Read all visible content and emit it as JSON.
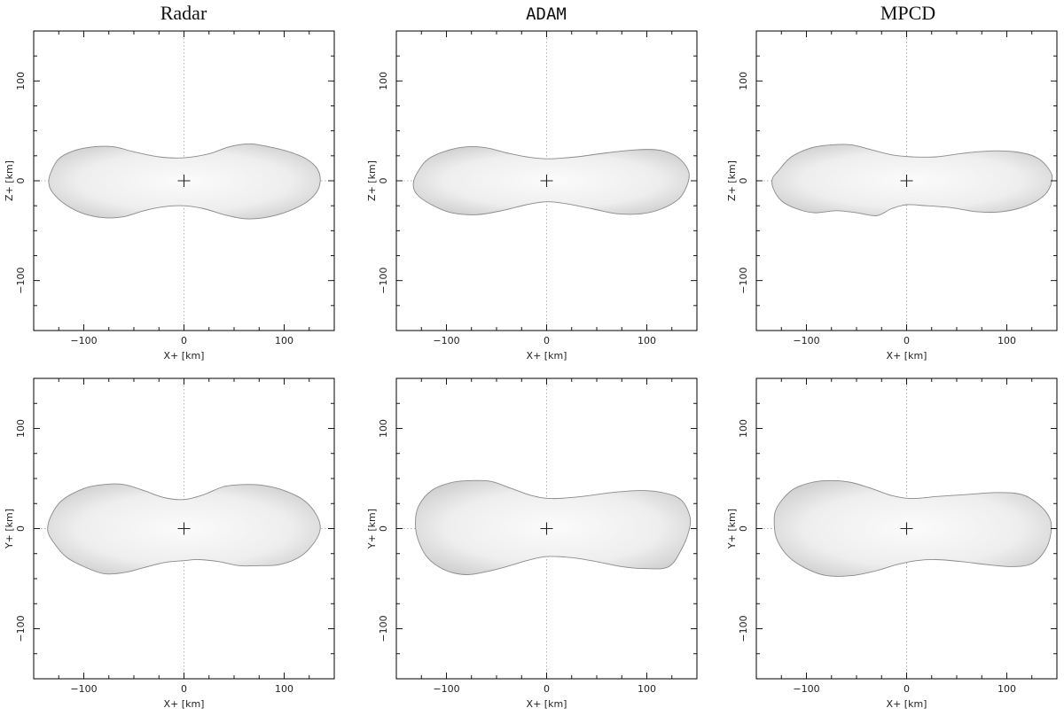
{
  "figure": {
    "columns": [
      {
        "title": "Radar",
        "title_font": "serif"
      },
      {
        "title": "ADAM",
        "title_font": "mono"
      },
      {
        "title": "MPCD",
        "title_font": "serif"
      }
    ],
    "rows": [
      {
        "xlabel": "X+ [km]",
        "ylabel": "Z+ [km]",
        "view": "XZ"
      },
      {
        "xlabel": "X+ [km]",
        "ylabel": "Y+ [km]",
        "view": "XY"
      }
    ],
    "xlim": [
      -150,
      150
    ],
    "ylim": [
      -150,
      150
    ],
    "major_ticks": [
      -100,
      0,
      100
    ],
    "tick_labels": [
      "−100",
      "0",
      "100"
    ],
    "minor_tick_step": 25,
    "grid": "dotted zero lines",
    "center_marker": "plus-icon",
    "colors": {
      "shape_fill": "#ececec",
      "shape_edge": "#8a8a8a",
      "frame": "#000000",
      "zero_line": "#9a9a9a"
    }
  },
  "chart_data": [
    {
      "type": "scatter",
      "title": "Radar",
      "xlabel": "X+ [km]",
      "ylabel": "Z+ [km]",
      "xlim": [
        -150,
        150
      ],
      "ylim": [
        -150,
        150
      ],
      "outline": [
        [
          -133,
          8
        ],
        [
          -125,
          22
        ],
        [
          -110,
          30
        ],
        [
          -90,
          34
        ],
        [
          -70,
          34
        ],
        [
          -50,
          29
        ],
        [
          -25,
          24
        ],
        [
          0,
          23
        ],
        [
          25,
          27
        ],
        [
          45,
          34
        ],
        [
          65,
          37
        ],
        [
          85,
          34
        ],
        [
          105,
          29
        ],
        [
          122,
          22
        ],
        [
          133,
          12
        ],
        [
          136,
          0
        ],
        [
          132,
          -12
        ],
        [
          120,
          -23
        ],
        [
          100,
          -32
        ],
        [
          80,
          -37
        ],
        [
          60,
          -38
        ],
        [
          40,
          -34
        ],
        [
          20,
          -28
        ],
        [
          0,
          -25
        ],
        [
          -20,
          -26
        ],
        [
          -40,
          -30
        ],
        [
          -60,
          -36
        ],
        [
          -80,
          -37
        ],
        [
          -100,
          -33
        ],
        [
          -118,
          -24
        ],
        [
          -131,
          -12
        ],
        [
          -135,
          -2
        ]
      ]
    },
    {
      "type": "scatter",
      "title": "ADAM",
      "xlabel": "X+ [km]",
      "ylabel": "Z+ [km]",
      "xlim": [
        -150,
        150
      ],
      "ylim": [
        -150,
        150
      ],
      "outline": [
        [
          -128,
          10
        ],
        [
          -118,
          22
        ],
        [
          -100,
          30
        ],
        [
          -80,
          34
        ],
        [
          -60,
          33
        ],
        [
          -40,
          28
        ],
        [
          -20,
          24
        ],
        [
          0,
          22
        ],
        [
          30,
          24
        ],
        [
          60,
          28
        ],
        [
          90,
          31
        ],
        [
          110,
          31
        ],
        [
          125,
          27
        ],
        [
          135,
          20
        ],
        [
          142,
          8
        ],
        [
          140,
          -5
        ],
        [
          132,
          -18
        ],
        [
          115,
          -28
        ],
        [
          95,
          -33
        ],
        [
          70,
          -33
        ],
        [
          45,
          -28
        ],
        [
          20,
          -23
        ],
        [
          0,
          -21
        ],
        [
          -20,
          -24
        ],
        [
          -45,
          -30
        ],
        [
          -70,
          -34
        ],
        [
          -95,
          -32
        ],
        [
          -115,
          -24
        ],
        [
          -130,
          -13
        ],
        [
          -133,
          -2
        ]
      ]
    },
    {
      "type": "scatter",
      "title": "MPCD",
      "xlabel": "X+ [km]",
      "ylabel": "Z+ [km]",
      "xlim": [
        -150,
        150
      ],
      "ylim": [
        -150,
        150
      ],
      "outline": [
        [
          -128,
          10
        ],
        [
          -115,
          24
        ],
        [
          -95,
          33
        ],
        [
          -75,
          36
        ],
        [
          -55,
          36
        ],
        [
          -35,
          31
        ],
        [
          -15,
          26
        ],
        [
          5,
          24
        ],
        [
          30,
          24
        ],
        [
          60,
          28
        ],
        [
          90,
          30
        ],
        [
          115,
          28
        ],
        [
          132,
          22
        ],
        [
          143,
          10
        ],
        [
          145,
          0
        ],
        [
          138,
          -14
        ],
        [
          120,
          -25
        ],
        [
          95,
          -31
        ],
        [
          70,
          -31
        ],
        [
          45,
          -27
        ],
        [
          20,
          -25
        ],
        [
          0,
          -24
        ],
        [
          -15,
          -28
        ],
        [
          -30,
          -35
        ],
        [
          -50,
          -32
        ],
        [
          -70,
          -30
        ],
        [
          -92,
          -32
        ],
        [
          -110,
          -28
        ],
        [
          -125,
          -20
        ],
        [
          -133,
          -8
        ],
        [
          -134,
          2
        ]
      ]
    },
    {
      "type": "scatter",
      "title": "Radar",
      "xlabel": "X+ [km]",
      "ylabel": "Y+ [km]",
      "xlim": [
        -150,
        150
      ],
      "ylim": [
        -150,
        150
      ],
      "outline": [
        [
          -133,
          12
        ],
        [
          -122,
          28
        ],
        [
          -100,
          40
        ],
        [
          -80,
          44
        ],
        [
          -60,
          44
        ],
        [
          -40,
          38
        ],
        [
          -20,
          31
        ],
        [
          0,
          29
        ],
        [
          20,
          34
        ],
        [
          40,
          42
        ],
        [
          60,
          44
        ],
        [
          80,
          43
        ],
        [
          100,
          38
        ],
        [
          120,
          28
        ],
        [
          132,
          14
        ],
        [
          136,
          0
        ],
        [
          130,
          -14
        ],
        [
          116,
          -28
        ],
        [
          95,
          -36
        ],
        [
          75,
          -37
        ],
        [
          55,
          -37
        ],
        [
          35,
          -33
        ],
        [
          15,
          -31
        ],
        [
          0,
          -32
        ],
        [
          -20,
          -34
        ],
        [
          -40,
          -39
        ],
        [
          -60,
          -44
        ],
        [
          -80,
          -45
        ],
        [
          -100,
          -38
        ],
        [
          -118,
          -28
        ],
        [
          -130,
          -14
        ],
        [
          -136,
          -2
        ]
      ]
    },
    {
      "type": "scatter",
      "title": "ADAM",
      "xlabel": "X+ [km]",
      "ylabel": "Y+ [km]",
      "xlim": [
        -150,
        150
      ],
      "ylim": [
        -150,
        150
      ],
      "outline": [
        [
          -128,
          22
        ],
        [
          -115,
          38
        ],
        [
          -95,
          46
        ],
        [
          -75,
          48
        ],
        [
          -55,
          47
        ],
        [
          -35,
          40
        ],
        [
          -15,
          33
        ],
        [
          5,
          30
        ],
        [
          35,
          32
        ],
        [
          65,
          36
        ],
        [
          95,
          38
        ],
        [
          120,
          35
        ],
        [
          135,
          28
        ],
        [
          143,
          12
        ],
        [
          142,
          -2
        ],
        [
          135,
          -20
        ],
        [
          122,
          -38
        ],
        [
          100,
          -40
        ],
        [
          75,
          -38
        ],
        [
          50,
          -33
        ],
        [
          25,
          -29
        ],
        [
          0,
          -28
        ],
        [
          -20,
          -32
        ],
        [
          -40,
          -38
        ],
        [
          -60,
          -43
        ],
        [
          -80,
          -46
        ],
        [
          -100,
          -42
        ],
        [
          -118,
          -30
        ],
        [
          -128,
          -12
        ],
        [
          -131,
          5
        ]
      ]
    },
    {
      "type": "scatter",
      "title": "MPCD",
      "xlabel": "X+ [km]",
      "ylabel": "Y+ [km]",
      "xlim": [
        -150,
        150
      ],
      "ylim": [
        -150,
        150
      ],
      "outline": [
        [
          -130,
          20
        ],
        [
          -115,
          38
        ],
        [
          -95,
          46
        ],
        [
          -75,
          48
        ],
        [
          -55,
          46
        ],
        [
          -35,
          40
        ],
        [
          -15,
          33
        ],
        [
          5,
          30
        ],
        [
          30,
          32
        ],
        [
          60,
          34
        ],
        [
          90,
          36
        ],
        [
          115,
          34
        ],
        [
          132,
          24
        ],
        [
          143,
          10
        ],
        [
          144,
          -5
        ],
        [
          138,
          -22
        ],
        [
          125,
          -35
        ],
        [
          105,
          -38
        ],
        [
          80,
          -36
        ],
        [
          55,
          -33
        ],
        [
          30,
          -31
        ],
        [
          10,
          -32
        ],
        [
          -10,
          -36
        ],
        [
          -30,
          -42
        ],
        [
          -55,
          -47
        ],
        [
          -80,
          -47
        ],
        [
          -100,
          -40
        ],
        [
          -118,
          -28
        ],
        [
          -129,
          -12
        ],
        [
          -132,
          3
        ]
      ]
    }
  ]
}
